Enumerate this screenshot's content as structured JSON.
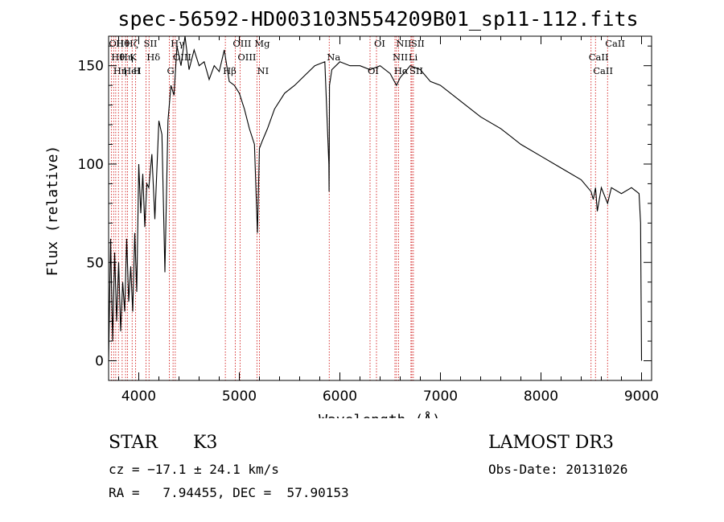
{
  "chart_data": {
    "type": "line",
    "title": "spec-56592-HD003103N554209B01_sp11-112.fits",
    "xlabel": "Wavelength (Å)",
    "ylabel": "Flux (relative)",
    "xlim": [
      3700,
      9100
    ],
    "ylim": [
      -10,
      165
    ],
    "x_ticks": [
      4000,
      5000,
      6000,
      7000,
      8000,
      9000
    ],
    "y_ticks": [
      0,
      50,
      100,
      150
    ],
    "series": [
      {
        "name": "spectrum",
        "x": [
          3700,
          3720,
          3740,
          3760,
          3780,
          3800,
          3820,
          3840,
          3860,
          3880,
          3900,
          3920,
          3940,
          3960,
          3980,
          4000,
          4020,
          4040,
          4060,
          4080,
          4100,
          4130,
          4160,
          4200,
          4230,
          4260,
          4290,
          4320,
          4350,
          4380,
          4420,
          4460,
          4500,
          4550,
          4600,
          4650,
          4700,
          4750,
          4800,
          4850,
          4900,
          4950,
          5000,
          5050,
          5100,
          5150,
          5180,
          5200,
          5230,
          5280,
          5350,
          5450,
          5550,
          5650,
          5750,
          5850,
          5890,
          5893,
          5897,
          5920,
          6000,
          6100,
          6200,
          6300,
          6400,
          6500,
          6563,
          6600,
          6700,
          6800,
          6900,
          7000,
          7200,
          7400,
          7600,
          7800,
          8000,
          8200,
          8400,
          8498,
          8520,
          8542,
          8560,
          8600,
          8662,
          8700,
          8800,
          8900,
          8950,
          8975,
          8990,
          9000
        ],
        "values": [
          0,
          62,
          10,
          55,
          20,
          50,
          15,
          40,
          25,
          62,
          30,
          48,
          25,
          65,
          35,
          100,
          75,
          95,
          68,
          90,
          88,
          105,
          72,
          122,
          115,
          45,
          122,
          140,
          135,
          160,
          150,
          165,
          148,
          158,
          150,
          152,
          143,
          150,
          147,
          158,
          142,
          140,
          136,
          128,
          118,
          110,
          65,
          108,
          112,
          118,
          128,
          136,
          140,
          145,
          150,
          152,
          100,
          86,
          140,
          148,
          152,
          150,
          150,
          148,
          150,
          146,
          140,
          144,
          150,
          148,
          142,
          140,
          132,
          124,
          118,
          110,
          104,
          98,
          92,
          86,
          82,
          88,
          76,
          88,
          80,
          88,
          85,
          88,
          86,
          85,
          70,
          0
        ]
      }
    ],
    "lines": [
      {
        "x": 3727,
        "label": "OII"
      },
      {
        "x": 3750,
        "label": "Hθ"
      },
      {
        "x": 3771,
        "label": "Hη"
      },
      {
        "x": 3798,
        "label": "Hθ"
      },
      {
        "x": 3835,
        "label": "Hη"
      },
      {
        "x": 3869,
        "label": "HeI"
      },
      {
        "x": 3889,
        "label": "Hζ"
      },
      {
        "x": 3934,
        "label": "K"
      },
      {
        "x": 3969,
        "label": "H"
      },
      {
        "x": 4072,
        "label": "SII"
      },
      {
        "x": 4102,
        "label": "Hδ"
      },
      {
        "x": 4304,
        "label": "G"
      },
      {
        "x": 4341,
        "label": "Hγ"
      },
      {
        "x": 4363,
        "label": "OIII"
      },
      {
        "x": 4861,
        "label": "Hβ"
      },
      {
        "x": 4959,
        "label": "OIII"
      },
      {
        "x": 5007,
        "label": "OIII"
      },
      {
        "x": 5200,
        "label": "NI"
      },
      {
        "x": 5175,
        "label": "Mg"
      },
      {
        "x": 5894,
        "label": "Na"
      },
      {
        "x": 6300,
        "label": "OI"
      },
      {
        "x": 6364,
        "label": "OI"
      },
      {
        "x": 6548,
        "label": "NII"
      },
      {
        "x": 6563,
        "label": "Hα"
      },
      {
        "x": 6583,
        "label": "NII"
      },
      {
        "x": 6707,
        "label": "Li"
      },
      {
        "x": 6716,
        "label": "SII"
      },
      {
        "x": 6731,
        "label": "SII"
      },
      {
        "x": 8498,
        "label": "CaII"
      },
      {
        "x": 8542,
        "label": "CaII"
      },
      {
        "x": 8662,
        "label": "CaII"
      }
    ]
  },
  "info": {
    "object_type": "STAR",
    "subclass": "K3",
    "survey": "LAMOST DR3",
    "cz": "cz = −17.1 ± 24.1 km/s",
    "obs_date": "Obs-Date: 20131026",
    "coords": "RA =   7.94455, DEC =  57.90153"
  },
  "colors": {
    "spectrum": "#000000",
    "line_markers": "#cc0000"
  }
}
